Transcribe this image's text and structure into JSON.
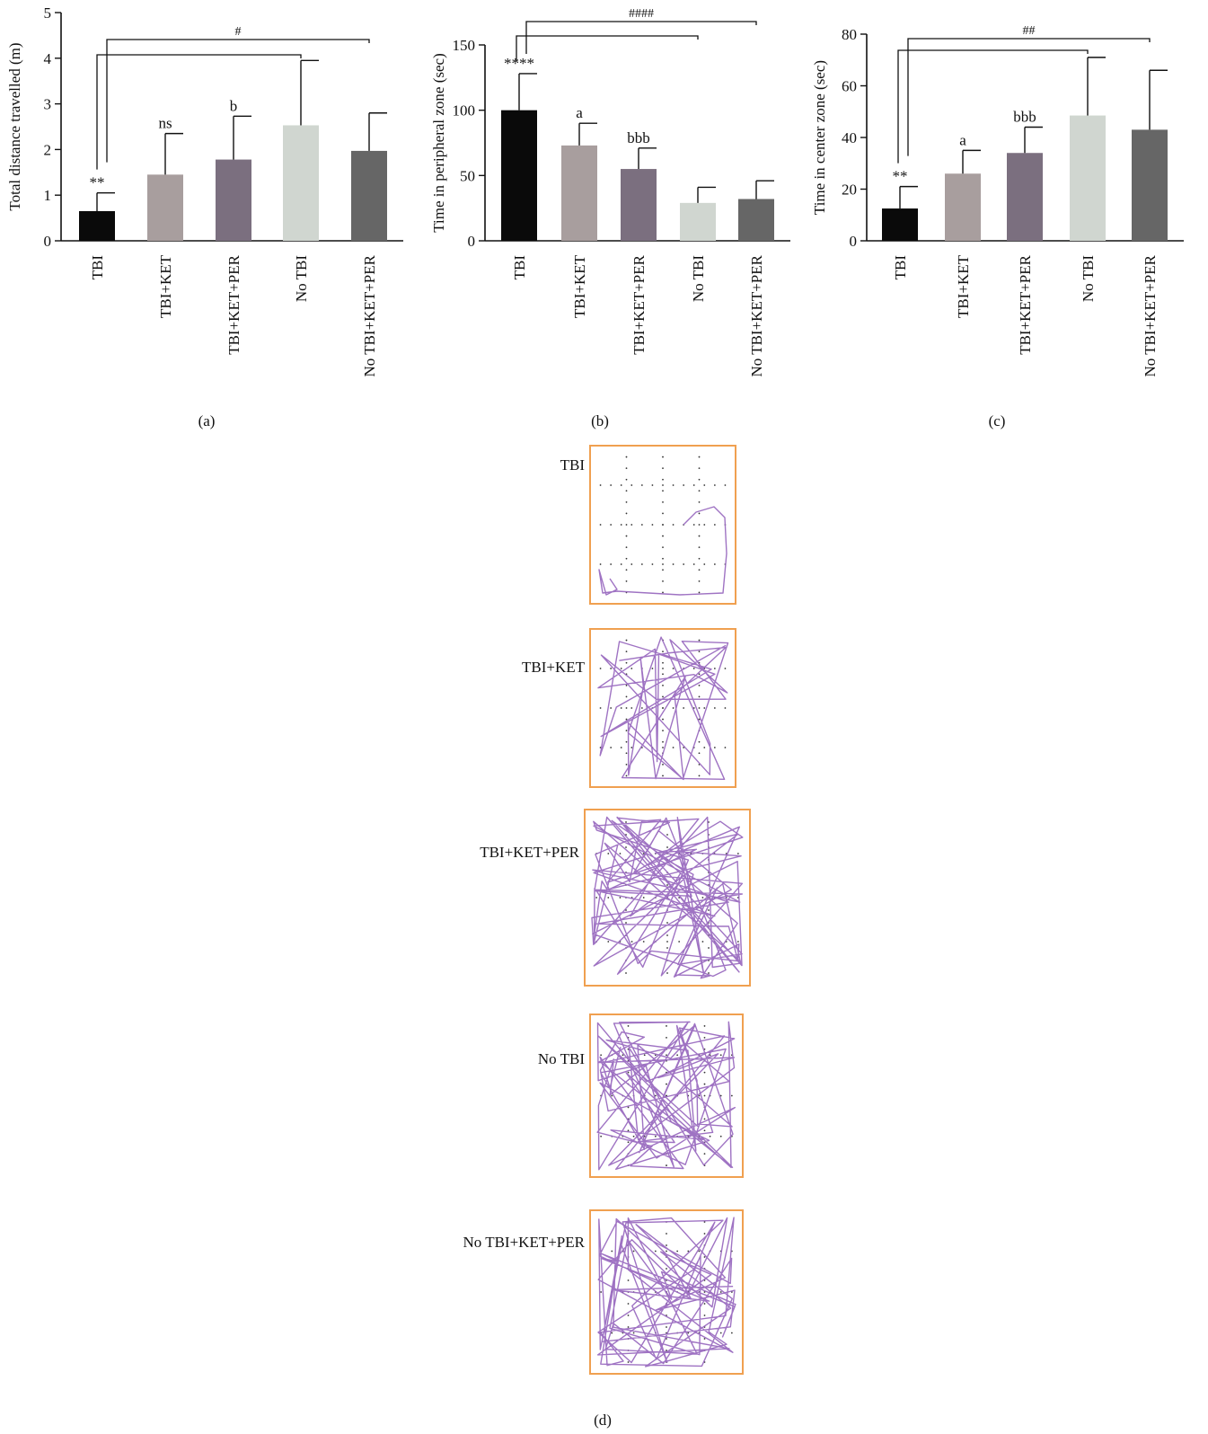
{
  "chart_data": [
    {
      "type": "bar",
      "panel_label": "(a)",
      "title": "",
      "ylabel": "Total distance travelled (m)",
      "ylim": [
        0,
        5
      ],
      "yticks": [
        "0",
        "1",
        "2",
        "3",
        "4",
        "5"
      ],
      "categories": [
        "TBI",
        "TBI+KET",
        "TBI+KET+PER",
        "No TBI",
        "No TBI+KET+PER"
      ],
      "values": [
        0.65,
        1.45,
        1.78,
        2.53,
        1.97
      ],
      "errors": [
        0.4,
        0.9,
        0.95,
        1.42,
        0.83
      ],
      "bar_colors": [
        "#0a0a0a",
        "#a89e9e",
        "#7b6f7f",
        "#d0d6d0",
        "#666666"
      ],
      "bar_labels": [
        "**",
        "ns",
        "b",
        "",
        ""
      ],
      "bracket_label": "#",
      "grid": false
    },
    {
      "type": "bar",
      "panel_label": "(b)",
      "title": "",
      "ylabel": "Time in peripheral zone (sec)",
      "ylim": [
        0,
        150
      ],
      "yticks": [
        "0",
        "50",
        "100",
        "150"
      ],
      "categories": [
        "TBI",
        "TBI+KET",
        "TBI+KET+PER",
        "No TBI",
        "No TBI+KET+PER"
      ],
      "values": [
        100,
        73,
        55,
        29,
        32
      ],
      "errors": [
        28,
        17,
        16,
        12,
        14
      ],
      "bar_colors": [
        "#0a0a0a",
        "#a89e9e",
        "#7b6f7f",
        "#d0d6d0",
        "#666666"
      ],
      "bar_labels": [
        "****",
        "a",
        "bbb",
        "",
        ""
      ],
      "bracket_label": "####",
      "grid": false
    },
    {
      "type": "bar",
      "panel_label": "(c)",
      "title": "",
      "ylabel": "Time in center zone (sec)",
      "ylim": [
        0,
        80
      ],
      "yticks": [
        "0",
        "20",
        "40",
        "60",
        "80"
      ],
      "categories": [
        "TBI",
        "TBI+KET",
        "TBI+KET+PER",
        "No TBI",
        "No TBI+KET+PER"
      ],
      "values": [
        12.5,
        26,
        34,
        48.5,
        43
      ],
      "errors": [
        8.5,
        9,
        10,
        22.5,
        23
      ],
      "bar_colors": [
        "#0a0a0a",
        "#a89e9e",
        "#7b6f7f",
        "#d0d6d0",
        "#666666"
      ],
      "bar_labels": [
        "**",
        "a",
        "bbb",
        "",
        ""
      ],
      "bracket_label": "##",
      "grid": false
    }
  ],
  "tracks": {
    "panel_label": "(d)",
    "border_color": "#f0a050",
    "path_color": "#9a6bc0",
    "items": [
      {
        "label": "TBI",
        "activity": 1
      },
      {
        "label": "TBI+KET",
        "activity": 2
      },
      {
        "label": "TBI+KET+PER",
        "activity": 5
      },
      {
        "label": "No TBI",
        "activity": 4
      },
      {
        "label": "No TBI+KET+PER",
        "activity": 4
      }
    ]
  }
}
